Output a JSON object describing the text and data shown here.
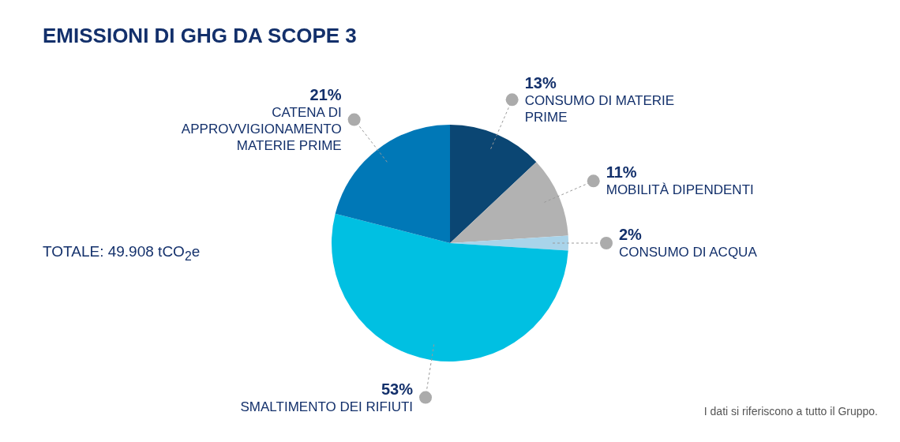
{
  "chart_data": {
    "type": "pie",
    "title": "EMISSIONI DI GHG DA SCOPE 3",
    "categories": [
      "CONSUMO DI MATERIE PRIME",
      "MOBILITÀ DIPENDENTI",
      "CONSUMO DI ACQUA",
      "SMALTIMENTO DEI RIFIUTI",
      "CATENA DI APPROVVIGIONAMENTO MATERIE PRIME"
    ],
    "values": [
      13,
      11,
      2,
      53,
      21
    ],
    "value_labels": [
      "13%",
      "11%",
      "2%",
      "53%",
      "21%"
    ],
    "colors": [
      "#0b4673",
      "#b2b2b2",
      "#a9d4ea",
      "#00c0e2",
      "#0078b7"
    ],
    "annotations": [
      "TOTALE: 49.908 tCO$_{2}$e",
      "I dati si riferiscono a tutto il Gruppo."
    ]
  }
}
